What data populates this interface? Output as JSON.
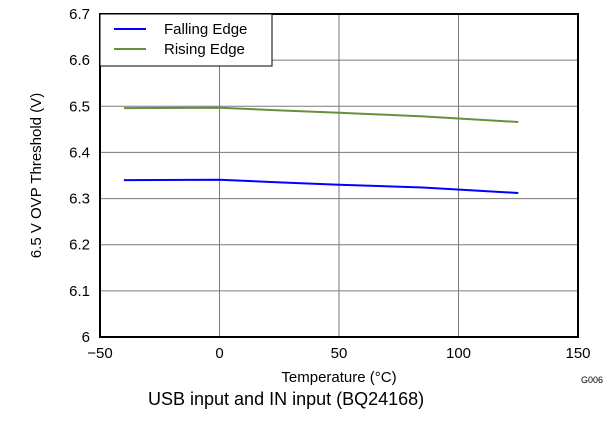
{
  "chart_data": {
    "type": "line",
    "xlabel": "Temperature (°C)",
    "ylabel": "6.5 V OVP Threshold (V)",
    "xlim": [
      -50,
      150
    ],
    "ylim": [
      6.0,
      6.7
    ],
    "xticks": [
      -50,
      0,
      50,
      100,
      150
    ],
    "xtick_labels": [
      "−50",
      "0",
      "50",
      "100",
      "150"
    ],
    "yticks": [
      6.0,
      6.1,
      6.2,
      6.3,
      6.4,
      6.5,
      6.6,
      6.7
    ],
    "ytick_labels": [
      "6",
      "6.1",
      "6.2",
      "6.3",
      "6.4",
      "6.5",
      "6.6",
      "6.7"
    ],
    "grid": true,
    "legend_position": "top-left",
    "series": [
      {
        "name": "Falling Edge",
        "color": "#0000ff",
        "x": [
          -40,
          0,
          25,
          50,
          85,
          125
        ],
        "y": [
          6.34,
          6.341,
          6.335,
          6.33,
          6.324,
          6.312
        ]
      },
      {
        "name": "Rising Edge",
        "color": "#6b8e3a",
        "x": [
          -40,
          0,
          25,
          50,
          85,
          125
        ],
        "y": [
          6.496,
          6.497,
          6.491,
          6.486,
          6.478,
          6.466
        ]
      }
    ],
    "code_label": "G006"
  },
  "caption": "USB input and IN input (BQ24168)"
}
